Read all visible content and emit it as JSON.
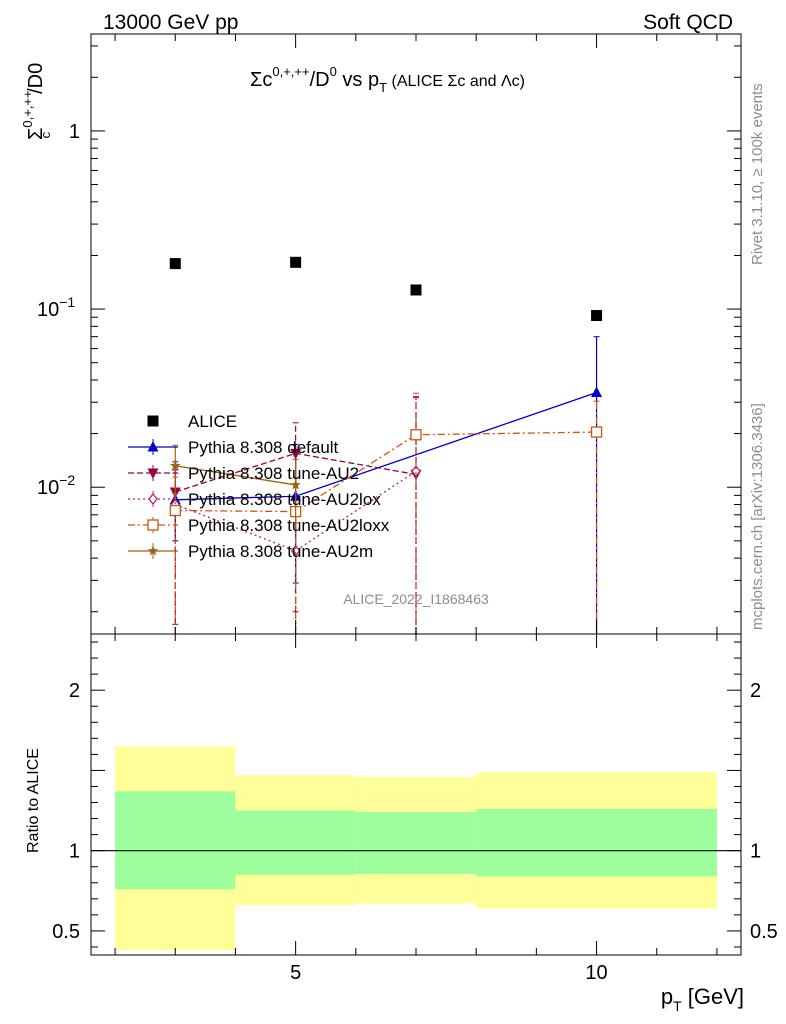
{
  "header": {
    "left": "13000 GeV pp",
    "right": "Soft QCD"
  },
  "side_labels": {
    "rivet": "Rivet 3.1.10, ≥ 100k events",
    "mcplots": "mcplots.cern.ch [arXiv:1306.3436]"
  },
  "watermark": "ALICE_2022_I1868463",
  "chart_data": [
    {
      "type": "scatter",
      "title_parts": {
        "sigma": "Σc",
        "sup": "0,+,++",
        "mid": "/D",
        "sup2": "0",
        "vs": " vs p",
        "sub": "T",
        "paren": " (ALICE Σc and Λc)"
      },
      "ylabel_parts": {
        "sigma": "Σ",
        "sup": "0,+,++",
        "sub": "c",
        "tail": "/D0"
      },
      "xlabel_parts": {
        "p": "p",
        "sub": "T",
        "tail": " [GeV]"
      },
      "x_scale": "linear",
      "y_scale": "log",
      "xlim": [
        1.6,
        12.4
      ],
      "ylim": [
        0.0015,
        3.5
      ],
      "x_ticks": [
        5,
        10
      ],
      "y_ticks": [
        {
          "value": 1,
          "label": "1",
          "exp": ""
        },
        {
          "value": 0.1,
          "label": "10",
          "exp": "−1"
        },
        {
          "value": 0.01,
          "label": "10",
          "exp": "−2"
        }
      ],
      "legend_position": "lower-left",
      "series": [
        {
          "name": "ALICE",
          "color": "#000000",
          "marker": "square-filled",
          "line": "none",
          "x": [
            3,
            5,
            7,
            10
          ],
          "y": [
            0.18,
            0.183,
            0.128,
            0.092
          ],
          "yerr_lo": [
            0,
            0,
            0,
            0
          ],
          "yerr_hi": [
            0,
            0,
            0,
            0
          ]
        },
        {
          "name": "Pythia 8.308 default",
          "color": "#0000cc",
          "marker": "triangle-up-filled",
          "line": "solid",
          "x": [
            3,
            5,
            10
          ],
          "y": [
            0.0085,
            0.0089,
            0.034
          ],
          "yerr_lo": [
            0.0035,
            0.006,
            0.034
          ],
          "yerr_hi": [
            0.004,
            0.0085,
            0.036
          ]
        },
        {
          "name": "Pythia 8.308 tune-AU2",
          "color": "#99003d",
          "marker": "triangle-down-filled",
          "line": "dashed",
          "x": [
            3,
            5,
            7
          ],
          "y": [
            0.0094,
            0.0155,
            0.0118
          ],
          "yerr_lo": [
            0.0077,
            0.0135,
            0.0116
          ],
          "yerr_hi": [
            0.0045,
            0.0075,
            0.02
          ]
        },
        {
          "name": "Pythia 8.308 tune-AU2lox",
          "color": "#b2225e",
          "marker": "diamond-open",
          "line": "dotted",
          "x": [
            3,
            5,
            7
          ],
          "y": [
            0.008,
            0.0044,
            0.0123
          ],
          "yerr_lo": [
            0.0065,
            0.0042,
            0.012
          ],
          "yerr_hi": [
            0.004,
            0.003,
            0.02
          ]
        },
        {
          "name": "Pythia 8.308 tune-AU2loxx",
          "color": "#cc5511",
          "marker": "square-open",
          "line": "dashdot",
          "x": [
            3,
            5,
            7,
            10
          ],
          "y": [
            0.0074,
            0.0073,
            0.0197,
            0.0204
          ],
          "yerr_lo": [
            0.006,
            0.0071,
            0.0195,
            0.0202
          ],
          "yerr_hi": [
            0.004,
            0.004,
            0.014,
            0.01
          ]
        },
        {
          "name": "Pythia 8.308 tune-AU2m",
          "color": "#a06010",
          "marker": "star-filled",
          "line": "solid",
          "x": [
            3,
            5
          ],
          "y": [
            0.0132,
            0.0103
          ],
          "yerr_lo": [
            0.004,
            0.004
          ],
          "yerr_hi": [
            0.004,
            0.004
          ]
        }
      ]
    },
    {
      "type": "area",
      "ylabel": "Ratio to ALICE",
      "xlabel_parts": {
        "p": "p",
        "sub": "T",
        "tail": " [GeV]"
      },
      "xlim": [
        1.6,
        12.4
      ],
      "ylim": [
        0.35,
        2.35
      ],
      "x_ticks": [
        5,
        10
      ],
      "y_ticks": [
        {
          "value": 0.5,
          "label": "0.5"
        },
        {
          "value": 1,
          "label": "1"
        },
        {
          "value": 2,
          "label": "2"
        }
      ],
      "reference_line": 1,
      "bands": {
        "inner_color": "#9cff9c",
        "outer_color": "#ffff99",
        "bins": [
          {
            "x_lo": 2,
            "x_hi": 4,
            "inner": [
              0.76,
              1.37
            ],
            "outer": [
              0.38,
              1.65
            ]
          },
          {
            "x_lo": 4,
            "x_hi": 6,
            "inner": [
              0.85,
              1.25
            ],
            "outer": [
              0.66,
              1.47
            ]
          },
          {
            "x_lo": 6,
            "x_hi": 8,
            "inner": [
              0.855,
              1.24
            ],
            "outer": [
              0.67,
              1.46
            ]
          },
          {
            "x_lo": 8,
            "x_hi": 12,
            "inner": [
              0.84,
              1.26
            ],
            "outer": [
              0.64,
              1.49
            ]
          }
        ]
      }
    }
  ]
}
